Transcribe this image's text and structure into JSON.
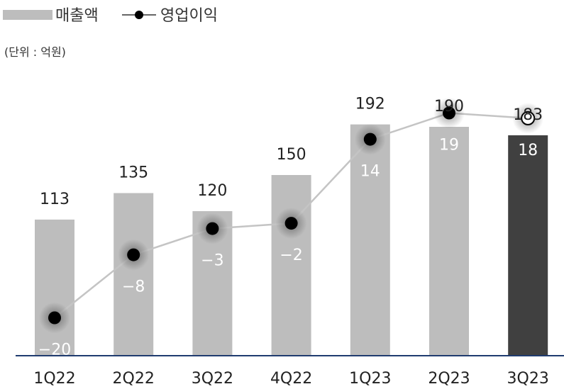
{
  "legend": {
    "revenue_label": "매출액",
    "op_income_label": "영업이익"
  },
  "unit_text": "(단위 : 억원)",
  "chart_data": {
    "type": "bar",
    "title": "",
    "xlabel": "",
    "ylabel": "",
    "categories": [
      "1Q22",
      "2Q22",
      "3Q22",
      "4Q22",
      "1Q23",
      "2Q23",
      "3Q23"
    ],
    "series": [
      {
        "name": "매출액",
        "type": "bar",
        "values": [
          113,
          135,
          120,
          150,
          192,
          190,
          183
        ],
        "color": "#bdbdbd",
        "highlight_color": "#404040",
        "highlight_index": 6
      },
      {
        "name": "영업이익",
        "type": "line",
        "values": [
          -20,
          -8,
          -3,
          -2,
          14,
          19,
          18
        ],
        "color": "#c4c4c4",
        "marker_color": "#000000",
        "labels": [
          "−20",
          "−8",
          "−3",
          "−2",
          "14",
          "19",
          "18"
        ]
      }
    ],
    "bar_ylim": [
      0,
      200
    ],
    "line_ylim": [
      -26,
      30
    ],
    "grid": false,
    "legend_position": "top-left",
    "axis_line_color": "#1f3b6f"
  }
}
